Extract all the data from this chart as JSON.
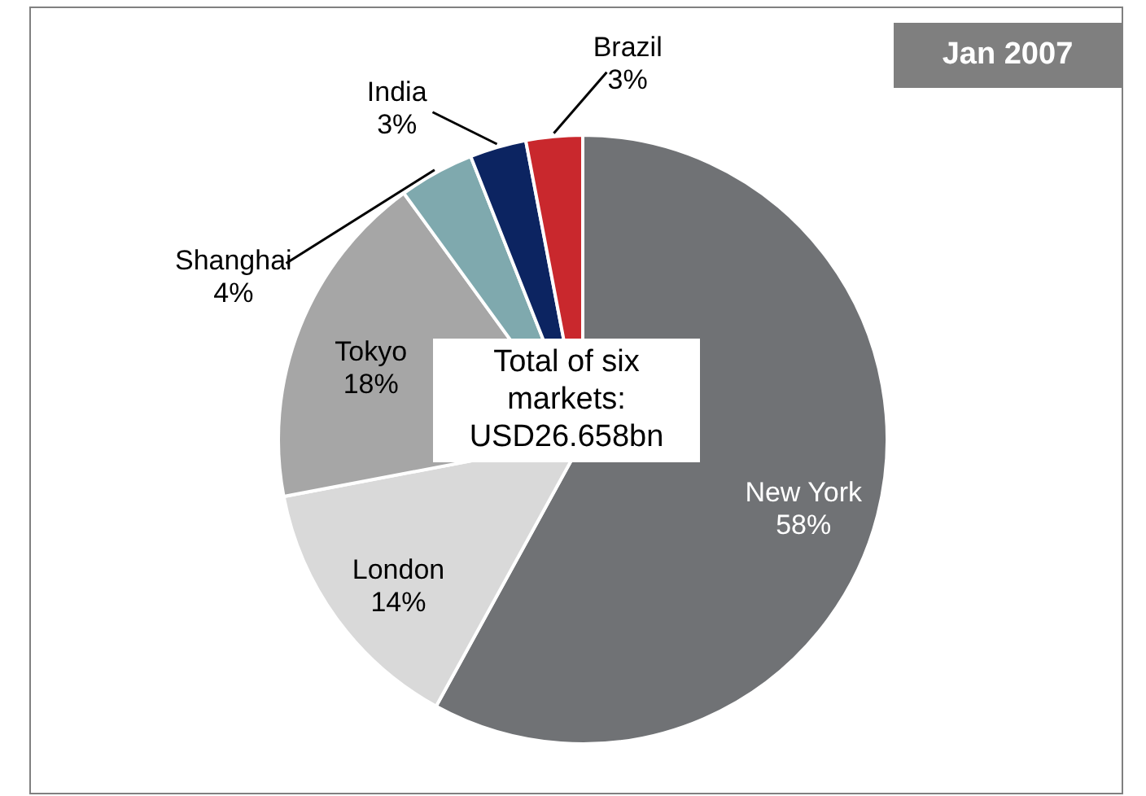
{
  "chart_data": {
    "type": "pie",
    "title": "Jan 2007",
    "categories": [
      "New York",
      "London",
      "Tokyo",
      "Shanghai",
      "India",
      "Brazil"
    ],
    "values": [
      58,
      14,
      18,
      4,
      3,
      3
    ],
    "value_labels": [
      "58%",
      "14%",
      "18%",
      "4%",
      "3%",
      "3%"
    ],
    "colors": [
      "#707275",
      "#d9d9d9",
      "#a6a6a6",
      "#7fa9ae",
      "#0c2461",
      "#c9282d"
    ],
    "annotations": [
      "Total of six markets: USD26.658bn"
    ]
  }
}
